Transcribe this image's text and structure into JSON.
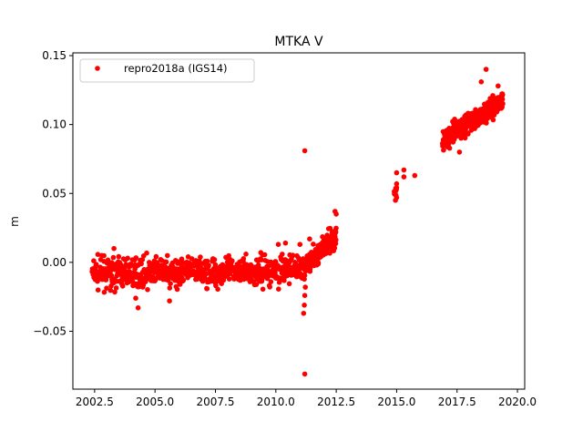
{
  "chart_data": {
    "type": "scatter",
    "title": "MTKA V",
    "xlabel": "",
    "ylabel": "m",
    "xlim": [
      2001.6,
      2020.3
    ],
    "ylim": [
      -0.092,
      0.152
    ],
    "x_ticks": [
      2002.5,
      2005.0,
      2007.5,
      2010.0,
      2012.5,
      2015.0,
      2017.5,
      2020.0
    ],
    "x_tick_labels": [
      "2002.5",
      "2005.0",
      "2007.5",
      "2010.0",
      "2012.5",
      "2015.0",
      "2017.5",
      "2020.0"
    ],
    "y_ticks": [
      -0.05,
      0.0,
      0.05,
      0.1,
      0.15
    ],
    "y_tick_labels": [
      "−0.05",
      "0.00",
      "0.05",
      "0.10",
      "0.15"
    ],
    "grid": false,
    "legend": {
      "position": "upper-left",
      "entries": [
        "repro2018a (IGS14)"
      ]
    },
    "series": [
      {
        "name": "repro2018a (IGS14)",
        "color": "#ff0000",
        "marker": "circle",
        "segments": [
          {
            "x_range": [
              2002.4,
              2009.8
            ],
            "y_trend": [
              -0.008,
              -0.006
            ],
            "y_noise": 0.01,
            "spacing": 0.012
          },
          {
            "x_range": [
              2009.8,
              2011.2
            ],
            "y_trend": [
              -0.006,
              -0.004
            ],
            "y_noise": 0.01,
            "spacing": 0.012
          },
          {
            "x_range": [
              2011.2,
              2012.5
            ],
            "y_trend": [
              -0.002,
              0.018
            ],
            "y_noise": 0.007,
            "spacing": 0.006
          },
          {
            "x_range": [
              2014.9,
              2015.0
            ],
            "y_trend": [
              0.05,
              0.054
            ],
            "y_noise": 0.004,
            "spacing": 0.01
          },
          {
            "x_range": [
              2016.9,
              2019.4
            ],
            "y_trend": [
              0.088,
              0.118
            ],
            "y_noise": 0.007,
            "spacing": 0.006
          }
        ],
        "points": [
          [
            2011.2,
            0.081
          ],
          [
            2011.2,
            -0.081
          ],
          [
            2011.15,
            -0.037
          ],
          [
            2011.18,
            -0.031
          ],
          [
            2011.2,
            -0.024
          ],
          [
            2011.22,
            -0.018
          ],
          [
            2004.3,
            -0.033
          ],
          [
            2004.2,
            -0.026
          ],
          [
            2005.6,
            -0.028
          ],
          [
            2003.3,
            0.01
          ],
          [
            2010.1,
            0.013
          ],
          [
            2010.4,
            0.014
          ],
          [
            2011.0,
            0.013
          ],
          [
            2011.4,
            0.017
          ],
          [
            2012.45,
            0.037
          ],
          [
            2012.5,
            0.035
          ],
          [
            2015.0,
            0.065
          ],
          [
            2015.3,
            0.067
          ],
          [
            2015.3,
            0.062
          ],
          [
            2015.75,
            0.063
          ],
          [
            2014.95,
            0.045
          ],
          [
            2015.0,
            0.047
          ],
          [
            2015.0,
            0.057
          ],
          [
            2018.7,
            0.14
          ],
          [
            2018.5,
            0.131
          ],
          [
            2019.2,
            0.128
          ],
          [
            2017.6,
            0.08
          ]
        ]
      }
    ]
  }
}
